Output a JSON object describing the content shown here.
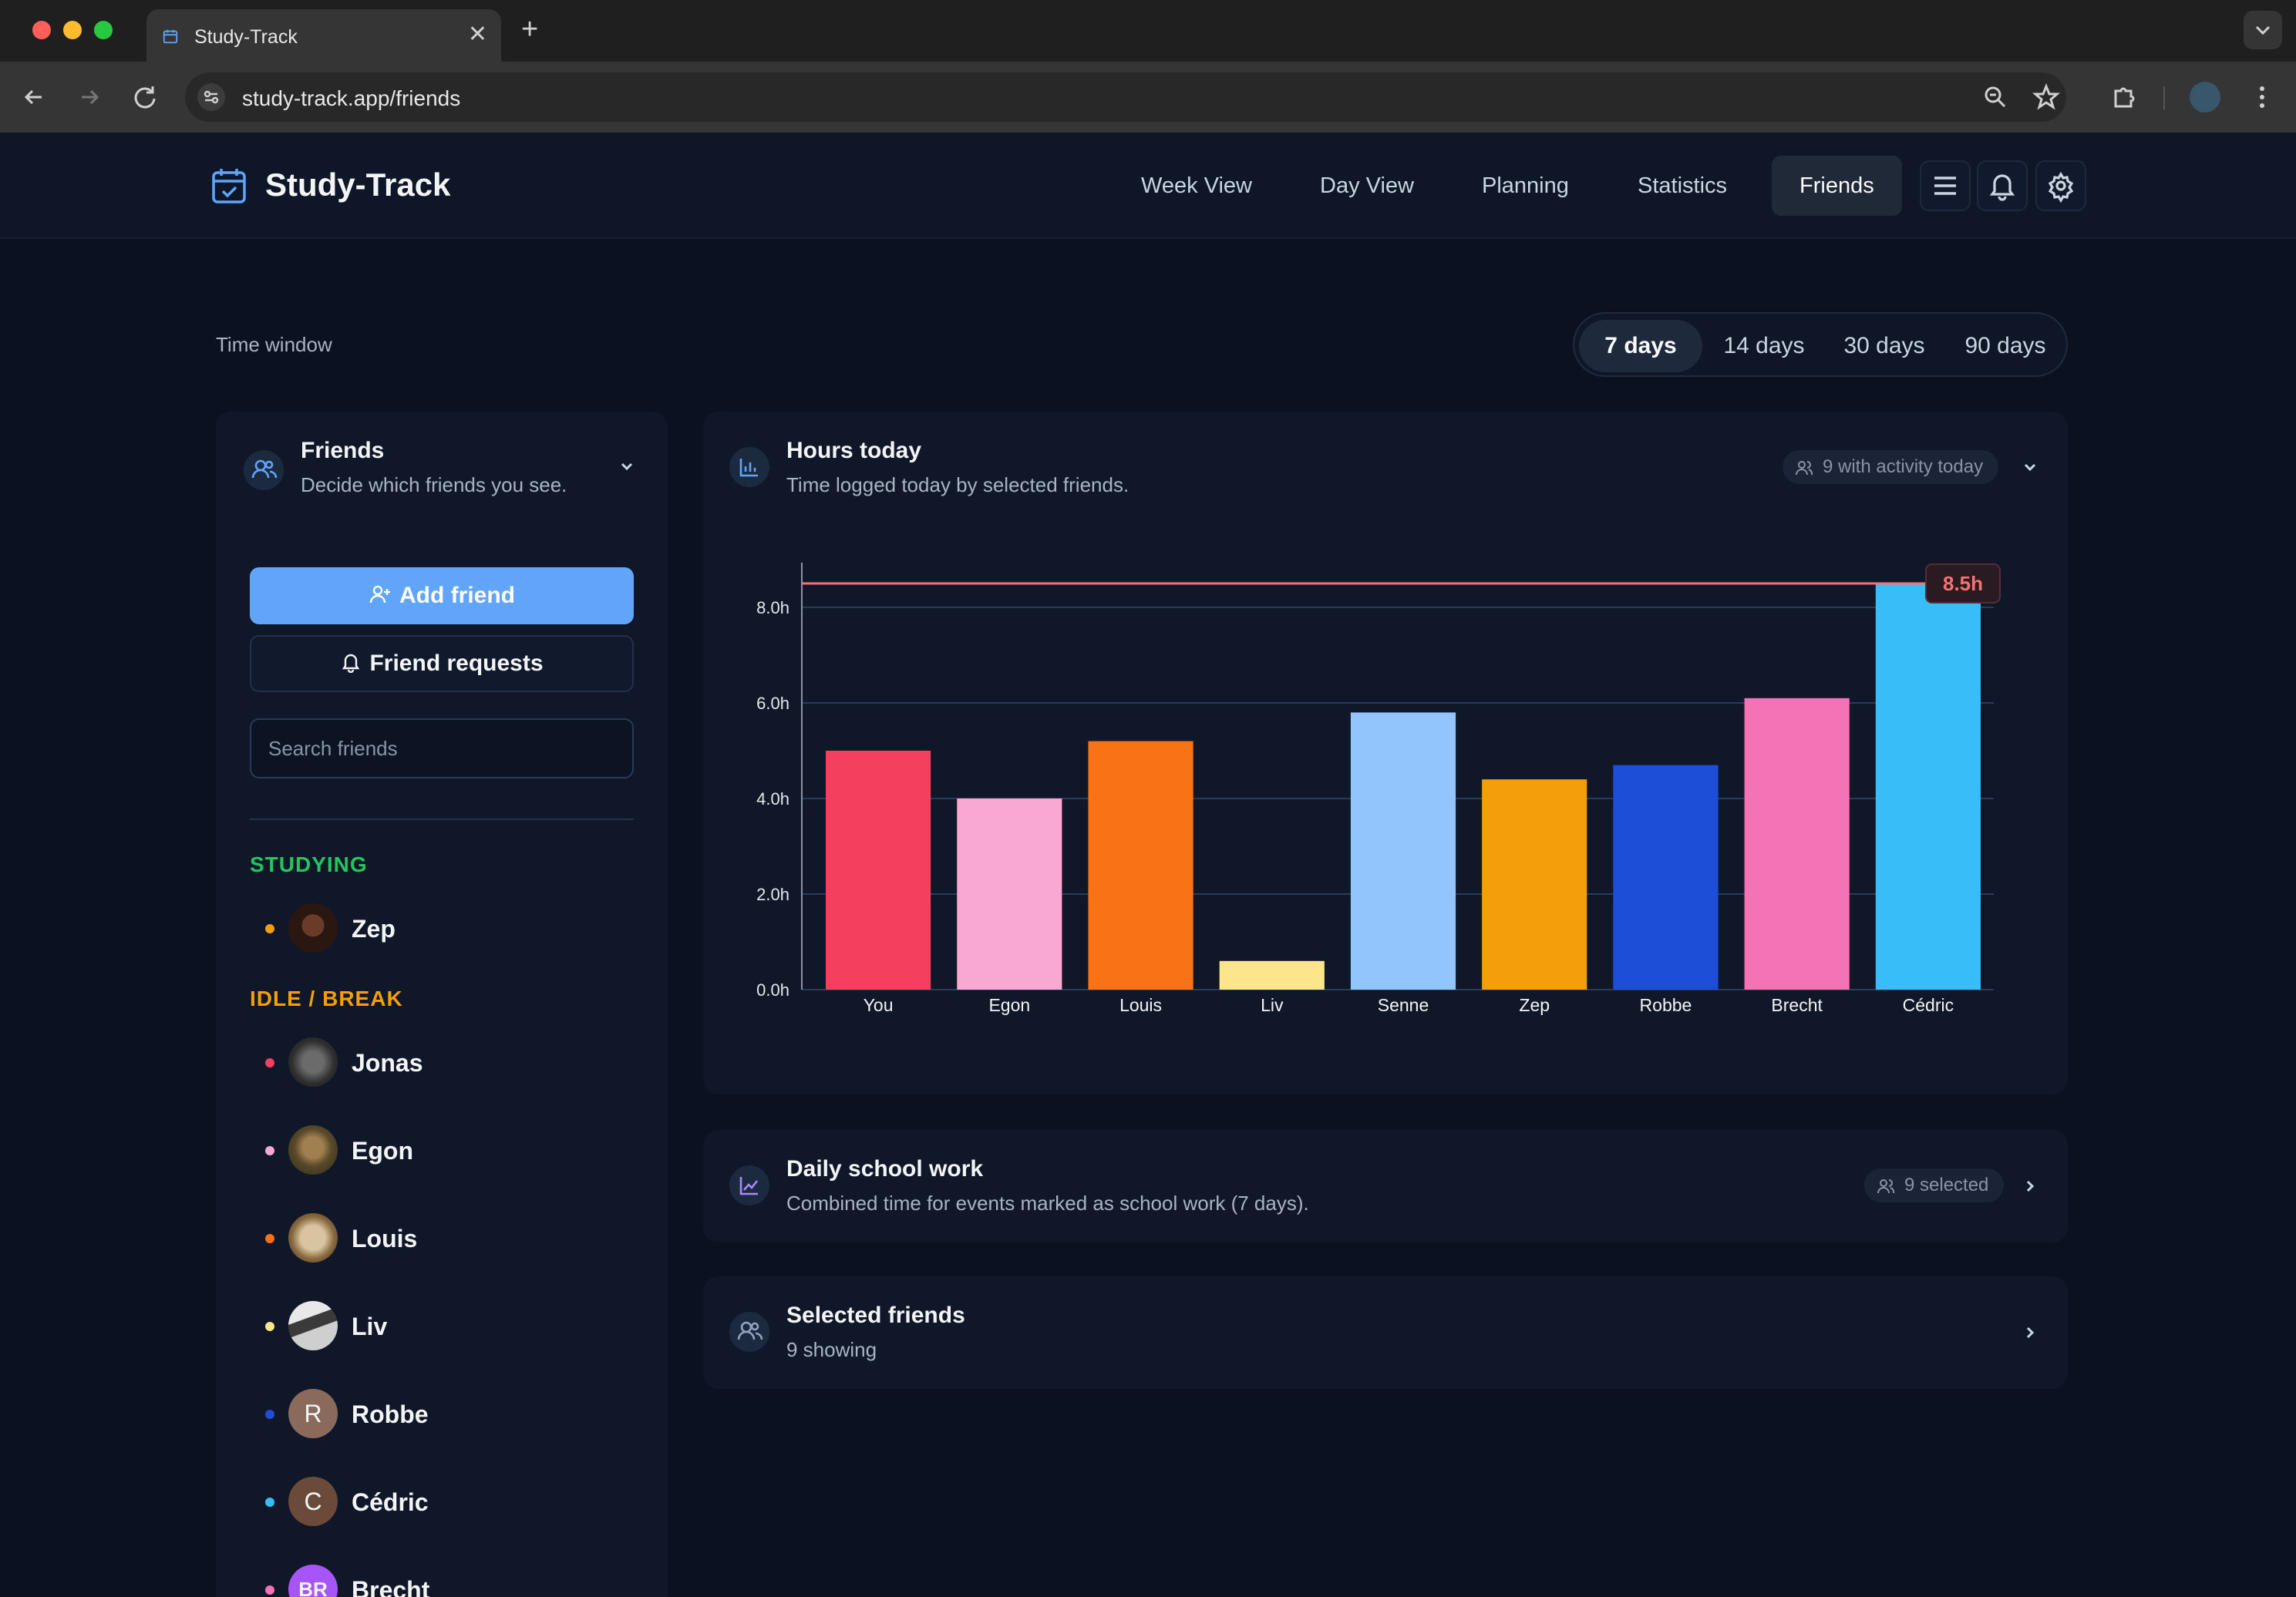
{
  "browser": {
    "tab_title": "Study-Track",
    "url": "study-track.app/friends"
  },
  "app": {
    "name": "Study-Track",
    "nav": [
      "Week View",
      "Day View",
      "Planning",
      "Statistics",
      "Friends"
    ],
    "active_nav": "Friends"
  },
  "time_window": {
    "label": "Time window",
    "options": [
      "7 days",
      "14 days",
      "30 days",
      "90 days"
    ],
    "selected": "7 days"
  },
  "friends_panel": {
    "title": "Friends",
    "subtitle": "Decide which friends you see.",
    "add_button": "Add friend",
    "requests_button": "Friend requests",
    "search_placeholder": "Search friends",
    "groups": [
      {
        "label": "STUDYING",
        "color": "#22c55e",
        "friends": [
          {
            "name": "Zep",
            "dot": "#f59e0b",
            "avatar": "photo"
          }
        ]
      },
      {
        "label": "IDLE / BREAK",
        "color": "#f59e0b",
        "friends": [
          {
            "name": "Jonas",
            "dot": "#f43f5e",
            "avatar": "photo"
          },
          {
            "name": "Egon",
            "dot": "#f9a8d4",
            "avatar": "photo"
          },
          {
            "name": "Louis",
            "dot": "#f97316",
            "avatar": "photo"
          },
          {
            "name": "Liv",
            "dot": "#fde68a",
            "avatar": "photo"
          },
          {
            "name": "Robbe",
            "dot": "#1d4ed8",
            "avatar": "R",
            "avatar_color": "#8a6a5a"
          },
          {
            "name": "Cédric",
            "dot": "#38bdf8",
            "avatar": "C",
            "avatar_color": "#6b4a3a"
          },
          {
            "name": "Brecht",
            "dot": "#f472b6",
            "avatar": "BR",
            "avatar_color": "#a855f7"
          }
        ]
      }
    ]
  },
  "hours_card": {
    "title": "Hours today",
    "subtitle": "Time logged today by selected friends.",
    "pill": "9 with activity today"
  },
  "chart_data": {
    "type": "bar",
    "categories": [
      "You",
      "Egon",
      "Louis",
      "Liv",
      "Senne",
      "Zep",
      "Robbe",
      "Brecht",
      "Cédric"
    ],
    "values": [
      5.0,
      4.0,
      5.2,
      0.6,
      5.8,
      4.4,
      4.7,
      6.1,
      8.5
    ],
    "colors": [
      "#f43f5e",
      "#f9a8d4",
      "#f97316",
      "#fde68a",
      "#93c5fd",
      "#f59e0b",
      "#1d4ed8",
      "#f472b6",
      "#38bdf8"
    ],
    "yticks": [
      "0.0h",
      "2.0h",
      "4.0h",
      "6.0h",
      "8.0h"
    ],
    "ylim": [
      0,
      9
    ],
    "max_line": {
      "value": 8.5,
      "label": "8.5h",
      "color": "#f87171"
    },
    "grid": true
  },
  "school_card": {
    "title": "Daily school work",
    "subtitle": "Combined time for events marked as school work (7 days).",
    "pill": "9 selected"
  },
  "selected_card": {
    "title": "Selected friends",
    "subtitle": "9 showing"
  }
}
